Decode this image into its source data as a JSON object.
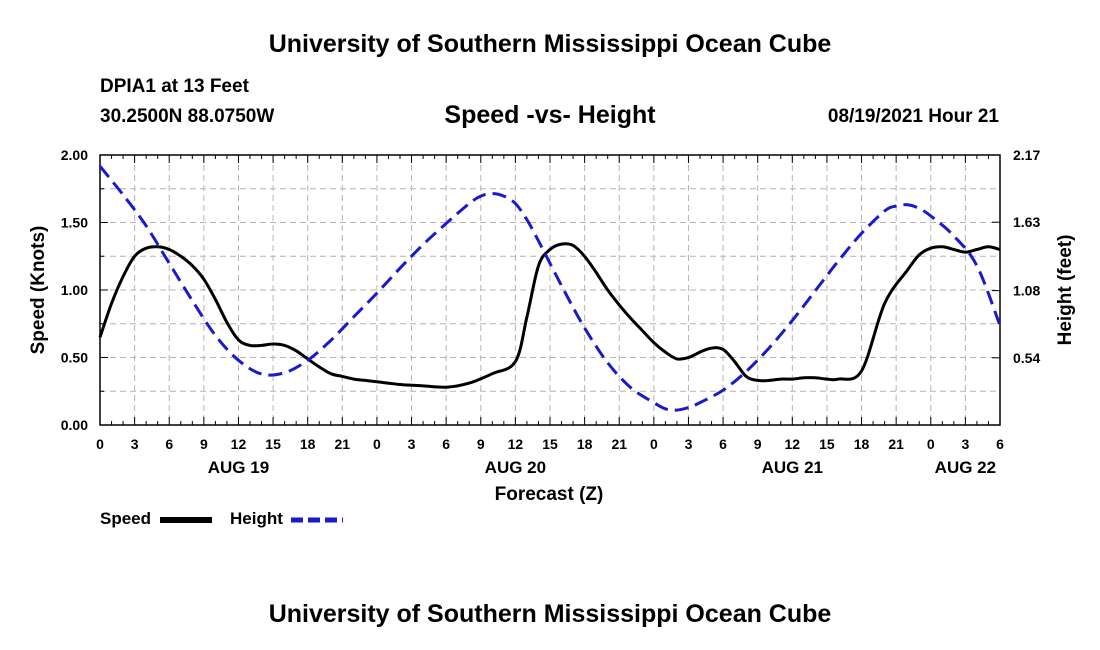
{
  "header": {
    "title": "University of Southern Mississippi Ocean Cube",
    "station": "DPIA1 at 13 Feet",
    "coords": "30.2500N  88.0750W",
    "datetime": "08/19/2021 Hour 21"
  },
  "footer": {
    "title": "University of Southern Mississippi Ocean Cube"
  },
  "colors": {
    "speed": "#000000",
    "height": "#1a1acc",
    "grid": "#b4b4b4"
  },
  "chart_data": {
    "type": "line",
    "title": "Speed -vs- Height",
    "xlabel": "Forecast (Z)",
    "ylabel": "Speed (Knots)",
    "y2label": "Height (feet)",
    "xlim": [
      0,
      78
    ],
    "ylim": [
      0,
      2.0
    ],
    "y2lim": [
      0.0,
      2.17
    ],
    "x_ticks": [
      0,
      3,
      6,
      9,
      12,
      15,
      18,
      21,
      24,
      27,
      30,
      33,
      36,
      39,
      42,
      45,
      48,
      51,
      54,
      57,
      60,
      63,
      66,
      69,
      72,
      75,
      78
    ],
    "x_tick_labels": [
      "0",
      "3",
      "6",
      "9",
      "12",
      "15",
      "18",
      "21",
      "0",
      "3",
      "6",
      "9",
      "12",
      "15",
      "18",
      "21",
      "0",
      "3",
      "6",
      "9",
      "12",
      "15",
      "18",
      "21",
      "0",
      "3",
      "6"
    ],
    "y_ticks": [
      0,
      0.5,
      1.0,
      1.5,
      2.0
    ],
    "y_tick_labels": [
      "0.00",
      "0.50",
      "1.00",
      "1.50",
      "2.00"
    ],
    "y2_ticks": [
      0.54,
      1.08,
      1.63,
      2.17
    ],
    "y2_tick_labels": [
      "0.54",
      "1.08",
      "1.63",
      "2.17"
    ],
    "date_labels": [
      {
        "x": 12,
        "label": "AUG 19"
      },
      {
        "x": 36,
        "label": "AUG 20"
      },
      {
        "x": 60,
        "label": "AUG 21"
      },
      {
        "x": 75,
        "label": "AUG 22"
      }
    ],
    "grid": true,
    "legend_position": "bottom-left",
    "series": [
      {
        "name": "Speed",
        "axis": "left",
        "style": "solid",
        "x": [
          0,
          1,
          2,
          3,
          4,
          5,
          6,
          7,
          8,
          9,
          10,
          11,
          12,
          13,
          14,
          15,
          16,
          17,
          18,
          19,
          20,
          21,
          22,
          23,
          24,
          26,
          28,
          30,
          32,
          34,
          36,
          37,
          38,
          39,
          40,
          41,
          42,
          43,
          44,
          45,
          46,
          47,
          48,
          49,
          50,
          51,
          52,
          53,
          54,
          55,
          56,
          57,
          58,
          59,
          60,
          61,
          62,
          63,
          64,
          66,
          68,
          70,
          71,
          72,
          73,
          74,
          75,
          76,
          77,
          78
        ],
        "values": [
          0.65,
          0.9,
          1.1,
          1.25,
          1.31,
          1.32,
          1.3,
          1.25,
          1.18,
          1.08,
          0.93,
          0.76,
          0.63,
          0.59,
          0.59,
          0.6,
          0.59,
          0.55,
          0.49,
          0.43,
          0.38,
          0.36,
          0.34,
          0.33,
          0.32,
          0.3,
          0.29,
          0.28,
          0.31,
          0.38,
          0.47,
          0.8,
          1.18,
          1.3,
          1.34,
          1.33,
          1.25,
          1.13,
          1.0,
          0.89,
          0.79,
          0.7,
          0.61,
          0.54,
          0.49,
          0.5,
          0.54,
          0.57,
          0.56,
          0.47,
          0.36,
          0.33,
          0.33,
          0.34,
          0.34,
          0.35,
          0.35,
          0.34,
          0.34,
          0.4,
          0.9,
          1.15,
          1.26,
          1.31,
          1.32,
          1.3,
          1.28,
          1.3,
          1.32,
          1.3
        ]
      },
      {
        "name": "Height",
        "axis": "right",
        "style": "dashed",
        "x": [
          0,
          2,
          4,
          6,
          8,
          10,
          12,
          14,
          16,
          18,
          20,
          22,
          24,
          26,
          28,
          30,
          32,
          33,
          34,
          35,
          36,
          37,
          38,
          40,
          42,
          44,
          46,
          48,
          49,
          50,
          51,
          52,
          54,
          56,
          58,
          60,
          62,
          64,
          66,
          68,
          69,
          70,
          71,
          72,
          74,
          76,
          78
        ],
        "values": [
          2.08,
          1.85,
          1.6,
          1.3,
          1.0,
          0.72,
          0.52,
          0.41,
          0.42,
          0.52,
          0.68,
          0.87,
          1.06,
          1.26,
          1.45,
          1.62,
          1.78,
          1.84,
          1.86,
          1.84,
          1.78,
          1.65,
          1.48,
          1.12,
          0.78,
          0.5,
          0.3,
          0.18,
          0.13,
          0.12,
          0.14,
          0.18,
          0.28,
          0.43,
          0.62,
          0.84,
          1.08,
          1.32,
          1.54,
          1.72,
          1.76,
          1.77,
          1.74,
          1.68,
          1.52,
          1.28,
          0.8
        ]
      }
    ]
  }
}
